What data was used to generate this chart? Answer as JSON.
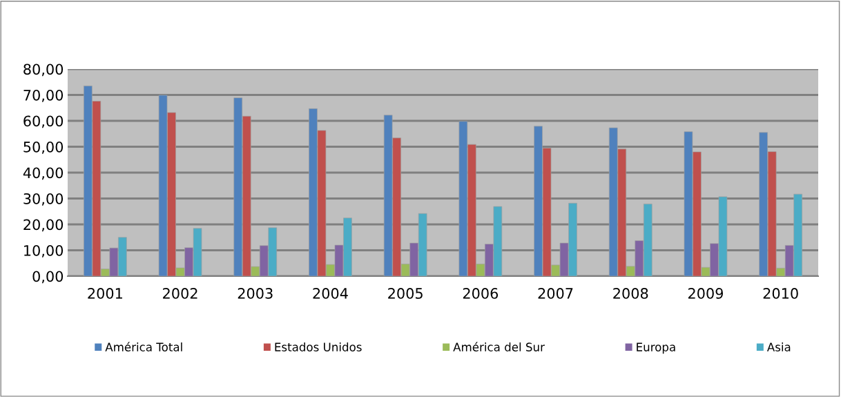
{
  "chart_data": {
    "type": "bar",
    "categories": [
      "2001",
      "2002",
      "2003",
      "2004",
      "2005",
      "2006",
      "2007",
      "2008",
      "2009",
      "2010"
    ],
    "series": [
      {
        "name": "América Total",
        "color": "#4f81bd",
        "values": [
          73.5,
          69.9,
          68.9,
          64.7,
          62.2,
          59.8,
          57.9,
          57.3,
          55.8,
          55.5
        ]
      },
      {
        "name": "Estados Unidos",
        "color": "#c0504d",
        "values": [
          67.6,
          63.2,
          61.8,
          56.3,
          53.4,
          50.9,
          49.5,
          49.1,
          48.0,
          48.1
        ]
      },
      {
        "name": "América del Sur",
        "color": "#9bbb59",
        "values": [
          2.8,
          3.2,
          3.7,
          4.5,
          4.7,
          4.7,
          4.3,
          3.8,
          3.4,
          3.1
        ]
      },
      {
        "name": "Europa",
        "color": "#8064a2",
        "values": [
          10.9,
          11.0,
          11.8,
          12.0,
          12.8,
          12.4,
          12.8,
          13.7,
          12.6,
          11.9
        ]
      },
      {
        "name": "Asia",
        "color": "#4bacc6",
        "values": [
          15.0,
          18.5,
          18.7,
          22.5,
          24.2,
          26.9,
          28.2,
          27.9,
          30.7,
          31.7
        ]
      }
    ],
    "ylim": [
      0,
      80
    ],
    "yticks": [
      {
        "value": 0,
        "label": "0,00"
      },
      {
        "value": 10,
        "label": "10,00"
      },
      {
        "value": 20,
        "label": "20,00"
      },
      {
        "value": 30,
        "label": "30,00"
      },
      {
        "value": 40,
        "label": "40,00"
      },
      {
        "value": 50,
        "label": "50,00"
      },
      {
        "value": 60,
        "label": "60,00"
      },
      {
        "value": 70,
        "label": "70,00"
      },
      {
        "value": 80,
        "label": "80,00"
      }
    ],
    "grid": "y",
    "legend": "bottom"
  }
}
